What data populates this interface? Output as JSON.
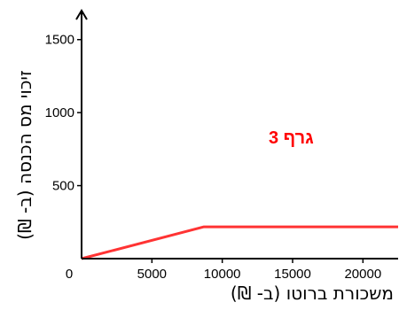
{
  "chart_data": {
    "type": "line",
    "title": "גרף 3",
    "xlabel": "משכורת ברוטו (ב- ₪)",
    "ylabel": "זיכוי מס הכנסה (ב- ₪)",
    "xlim": [
      0,
      22500
    ],
    "ylim": [
      0,
      1650
    ],
    "x_ticks": [
      0,
      5000,
      10000,
      15000,
      20000
    ],
    "x_tick_labels": [
      "0",
      "5000",
      "10000",
      "15000",
      "20000"
    ],
    "y_ticks": [
      500,
      1000,
      1500
    ],
    "y_tick_labels": [
      "500",
      "1000",
      "1500"
    ],
    "grid": false,
    "series": [
      {
        "color": "#ff3333",
        "points": [
          {
            "x": 0,
            "y": 0
          },
          {
            "x": 8700,
            "y": 218
          },
          {
            "x": 22500,
            "y": 218
          }
        ]
      }
    ],
    "colors": {
      "axis": "#000000",
      "title": "#ff0000"
    }
  }
}
